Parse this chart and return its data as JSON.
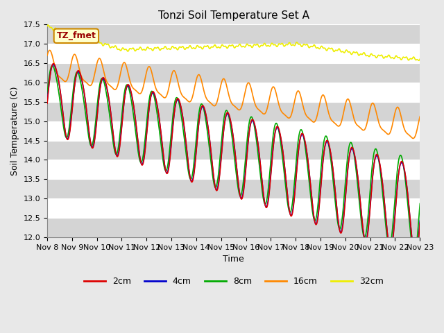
{
  "title": "Tonzi Soil Temperature Set A",
  "ylabel": "Soil Temperature (C)",
  "xlabel": "Time",
  "ylim": [
    12.0,
    17.5
  ],
  "xlim": [
    0,
    15
  ],
  "x_tick_labels": [
    "Nov 8",
    "Nov 9",
    "Nov 10",
    "Nov 11",
    "Nov 12",
    "Nov 13",
    "Nov 14",
    "Nov 15",
    "Nov 16",
    "Nov 17",
    "Nov 18",
    "Nov 19",
    "Nov 20",
    "Nov 21",
    "Nov 22",
    "Nov 23"
  ],
  "line_colors": {
    "2cm": "#dd0000",
    "4cm": "#0000cc",
    "8cm": "#00aa00",
    "16cm": "#ff8800",
    "32cm": "#eeee00"
  },
  "label_box_text": "TZ_fmet",
  "label_box_bg": "#ffffcc",
  "label_box_border": "#cc8800",
  "label_box_text_color": "#990000",
  "bg_color": "#e8e8e8",
  "title_fontsize": 11,
  "axis_label_fontsize": 9,
  "tick_fontsize": 8,
  "legend_fontsize": 9
}
